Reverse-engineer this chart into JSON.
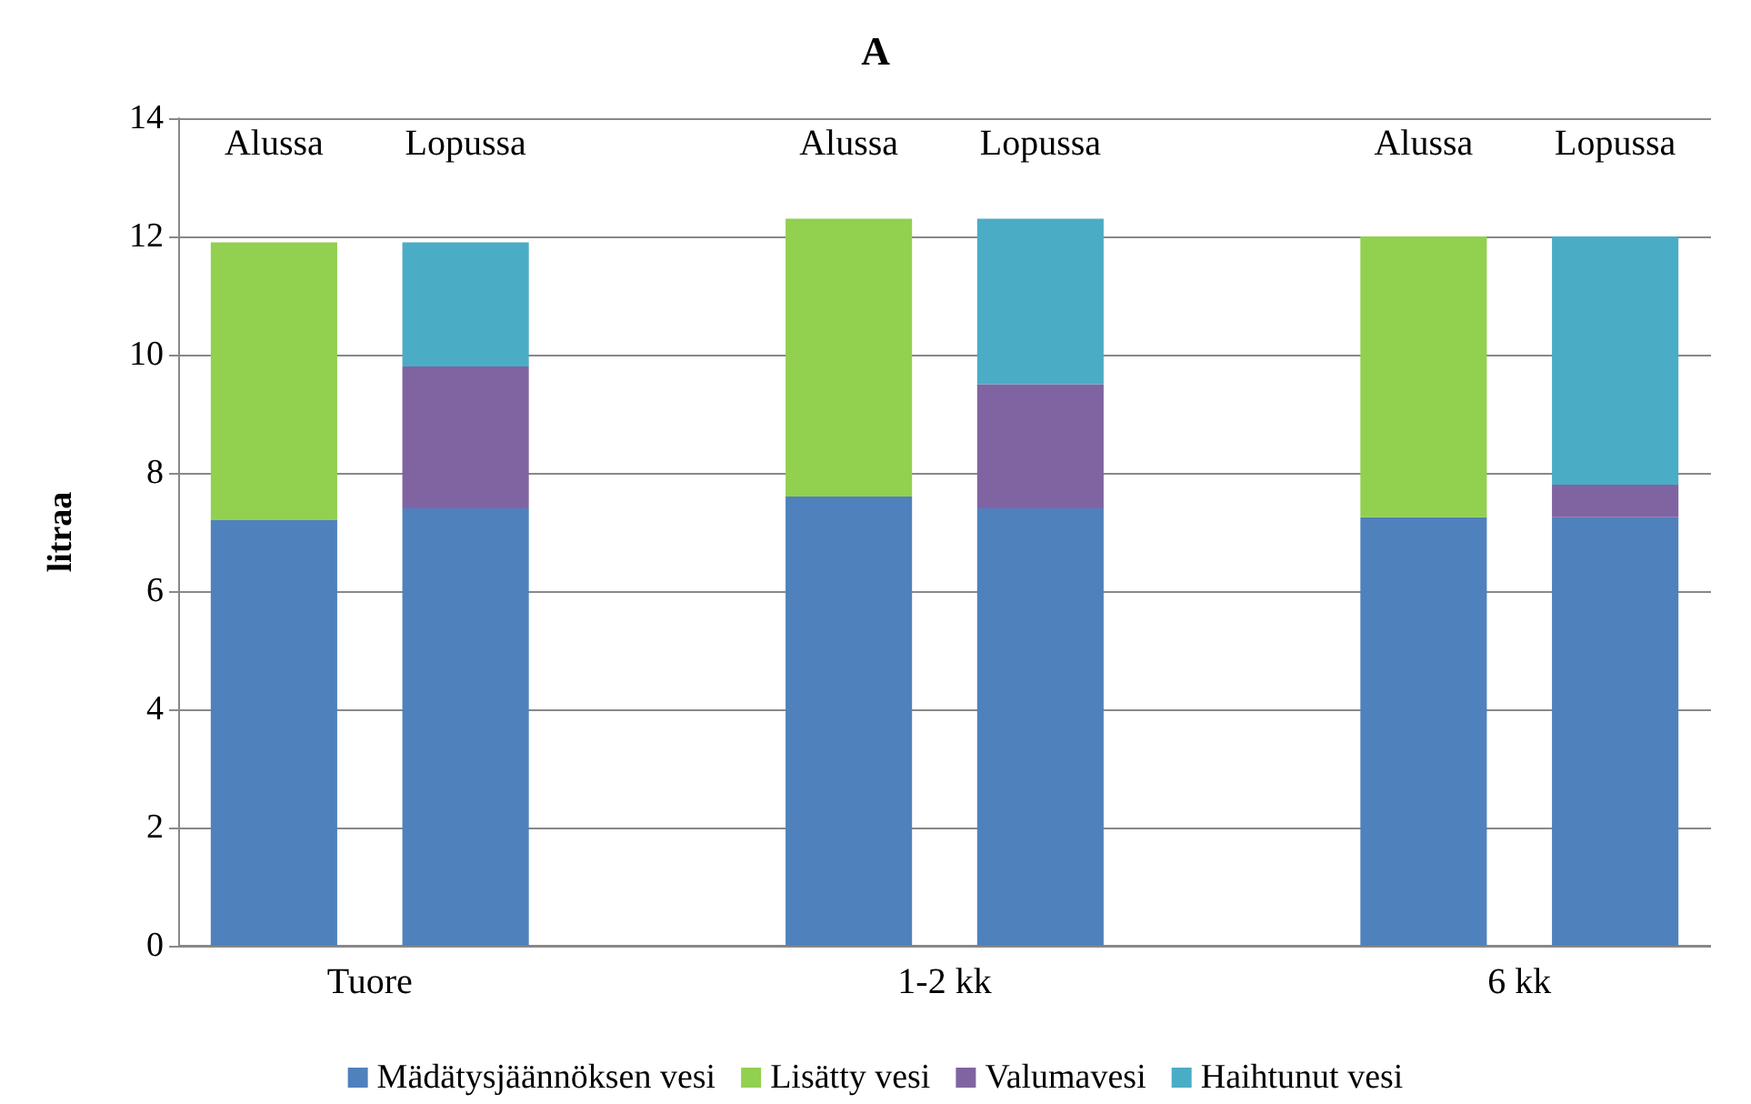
{
  "chart_data": {
    "type": "bar",
    "title": "A",
    "ylabel": "litraa",
    "categories": [
      "Alussa",
      "Lopussa",
      null,
      "Alussa",
      "Lopussa",
      null,
      "Alussa",
      "Lopussa"
    ],
    "series": [
      {
        "name": "Mädätysjäännöksen vesi",
        "color": "#4f81bd",
        "values": [
          7.2,
          7.4,
          null,
          7.6,
          7.4,
          null,
          7.25,
          7.25
        ]
      },
      {
        "name": "Lisätty vesi",
        "color": "#92d050",
        "values": [
          4.7,
          null,
          null,
          4.7,
          null,
          null,
          4.75,
          null
        ]
      },
      {
        "name": "Valumavesi",
        "color": "#8064a2",
        "values": [
          null,
          2.4,
          null,
          null,
          2.1,
          null,
          null,
          0.55
        ]
      },
      {
        "name": "Haihtunut vesi",
        "color": "#4bacc6",
        "values": [
          null,
          2.1,
          null,
          null,
          2.8,
          null,
          null,
          4.2
        ]
      }
    ],
    "stacked": true,
    "ylim": [
      0,
      14
    ],
    "yticks": [
      0,
      2,
      4,
      6,
      8,
      10,
      12,
      14
    ],
    "grid": "y",
    "legend": "bottom",
    "annotations": [
      "Tuore",
      "1-2 kk",
      "6 kk"
    ]
  }
}
